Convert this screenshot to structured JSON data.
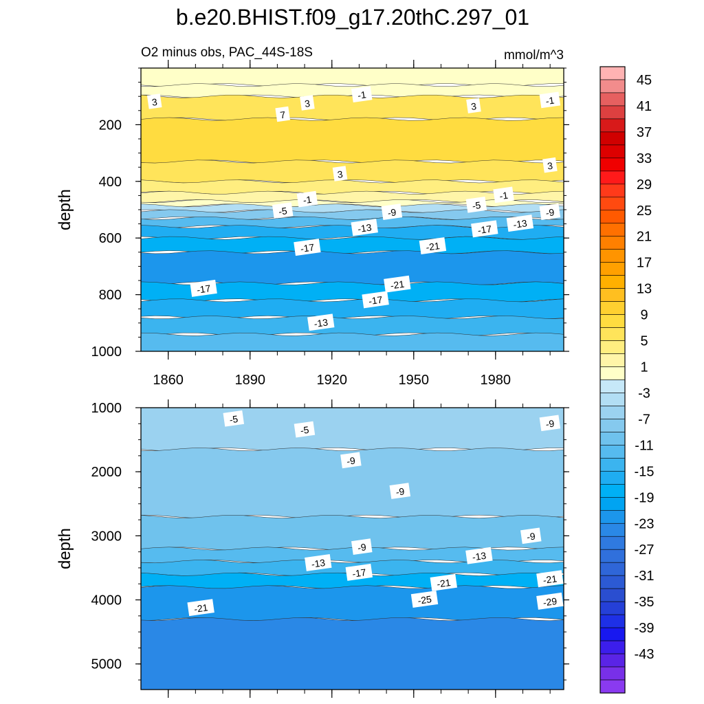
{
  "figure": {
    "title": "b.e20.BHIST.f09_g17.20thC.297_01",
    "subtitle_left": "O2 minus obs, PAC_44S-18S",
    "units": "mmol/m^3"
  },
  "chart_data": [
    {
      "type": "heatmap",
      "panel": "upper",
      "xlabel": "",
      "ylabel": "depth",
      "x_range": [
        1850,
        2005
      ],
      "ylim": [
        1000,
        0
      ],
      "xticks": [
        1860,
        1890,
        1920,
        1950,
        1980
      ],
      "yticks": [
        200,
        400,
        600,
        800,
        1000
      ],
      "bands": [
        {
          "from": 0,
          "to": 60,
          "value": 1
        },
        {
          "from": 60,
          "to": 100,
          "value": 1
        },
        {
          "from": 100,
          "to": 180,
          "value": 7
        },
        {
          "from": 180,
          "to": 330,
          "value": 9
        },
        {
          "from": 330,
          "to": 400,
          "value": 7
        },
        {
          "from": 400,
          "to": 440,
          "value": 5
        },
        {
          "from": 440,
          "to": 470,
          "value": 3
        },
        {
          "from": 470,
          "to": 485,
          "value": 1
        },
        {
          "from": 485,
          "to": 505,
          "value": -3
        },
        {
          "from": 505,
          "to": 530,
          "value": -7
        },
        {
          "from": 530,
          "to": 560,
          "value": -11
        },
        {
          "from": 560,
          "to": 600,
          "value": -15
        },
        {
          "from": 600,
          "to": 650,
          "value": -17
        },
        {
          "from": 650,
          "to": 760,
          "value": -21
        },
        {
          "from": 760,
          "to": 820,
          "value": -17
        },
        {
          "from": 820,
          "to": 880,
          "value": -15
        },
        {
          "from": 880,
          "to": 940,
          "value": -13
        },
        {
          "from": 940,
          "to": 1000,
          "value": -11
        }
      ],
      "contour_labels": [
        {
          "text": "3",
          "x": 1855,
          "y": 120
        },
        {
          "text": "3",
          "x": 1911,
          "y": 125
        },
        {
          "text": "-1",
          "x": 1931,
          "y": 95
        },
        {
          "text": "7",
          "x": 1902,
          "y": 165
        },
        {
          "text": "3",
          "x": 1972,
          "y": 135
        },
        {
          "text": "-1",
          "x": 2002,
          "y": 115
        },
        {
          "text": "3",
          "x": 1923,
          "y": 375
        },
        {
          "text": "3",
          "x": 2007,
          "y": 345
        },
        {
          "text": "-5",
          "x": 1902,
          "y": 505
        },
        {
          "text": "-1",
          "x": 1911,
          "y": 465
        },
        {
          "text": "-9",
          "x": 1942,
          "y": 510
        },
        {
          "text": "-13",
          "x": 1932,
          "y": 565
        },
        {
          "text": "-17",
          "x": 1911,
          "y": 635
        },
        {
          "text": "-21",
          "x": 1957,
          "y": 630
        },
        {
          "text": "-5",
          "x": 1973,
          "y": 485
        },
        {
          "text": "-1",
          "x": 1983,
          "y": 450
        },
        {
          "text": "-17",
          "x": 1976,
          "y": 570
        },
        {
          "text": "-13",
          "x": 1989,
          "y": 550
        },
        {
          "text": "-9",
          "x": 2005,
          "y": 510
        },
        {
          "text": "-17",
          "x": 1873,
          "y": 780
        },
        {
          "text": "-21",
          "x": 1944,
          "y": 765
        },
        {
          "text": "-17",
          "x": 1936,
          "y": 820
        },
        {
          "text": "-13",
          "x": 1916,
          "y": 900
        }
      ]
    },
    {
      "type": "heatmap",
      "panel": "lower",
      "xlabel": "",
      "ylabel": "depth",
      "x_range": [
        1850,
        2005
      ],
      "ylim": [
        5400,
        1000
      ],
      "yticks": [
        1000,
        2000,
        3000,
        4000,
        5000
      ],
      "bands": [
        {
          "from": 1000,
          "to": 1650,
          "value": -5
        },
        {
          "from": 1650,
          "to": 2700,
          "value": -7
        },
        {
          "from": 2700,
          "to": 3200,
          "value": -9
        },
        {
          "from": 3200,
          "to": 3400,
          "value": -11
        },
        {
          "from": 3400,
          "to": 3600,
          "value": -13
        },
        {
          "from": 3600,
          "to": 3800,
          "value": -17
        },
        {
          "from": 3800,
          "to": 4300,
          "value": -21
        },
        {
          "from": 4300,
          "to": 5400,
          "value": -23
        }
      ],
      "contour_labels": [
        {
          "text": "-5",
          "x": 1884,
          "y": 1180
        },
        {
          "text": "-5",
          "x": 1910,
          "y": 1350
        },
        {
          "text": "-9",
          "x": 2004,
          "y": 1250
        },
        {
          "text": "-9",
          "x": 1927,
          "y": 1830
        },
        {
          "text": "-9",
          "x": 1945,
          "y": 2310
        },
        {
          "text": "-9",
          "x": 1993,
          "y": 3010
        },
        {
          "text": "-9",
          "x": 1931,
          "y": 3180
        },
        {
          "text": "-13",
          "x": 1915,
          "y": 3430
        },
        {
          "text": "-13",
          "x": 1974,
          "y": 3320
        },
        {
          "text": "-17",
          "x": 1930,
          "y": 3580
        },
        {
          "text": "-21",
          "x": 1961,
          "y": 3740
        },
        {
          "text": "-21",
          "x": 2004,
          "y": 3680
        },
        {
          "text": "-25",
          "x": 1954,
          "y": 4000
        },
        {
          "text": "-29",
          "x": 2002,
          "y": 4030
        },
        {
          "text": "-21",
          "x": 1872,
          "y": 4130
        }
      ]
    },
    {
      "type": "colorbar",
      "labels": [
        "45",
        "41",
        "37",
        "33",
        "29",
        "25",
        "21",
        "17",
        "13",
        "9",
        "5",
        "1",
        "-3",
        "-7",
        "-11",
        "-15",
        "-19",
        "-23",
        "-27",
        "-31",
        "-35",
        "-39",
        "-43"
      ],
      "colors": [
        "#ffb3b3",
        "#f28c8c",
        "#e66060",
        "#dd4040",
        "#d81a1a",
        "#d00000",
        "#dd0000",
        "#f00000",
        "#ff1a1a",
        "#ff3a1a",
        "#ff4a10",
        "#ff5a00",
        "#ff7000",
        "#ff8000",
        "#ff9400",
        "#ffa000",
        "#ffb000",
        "#ffbf20",
        "#ffd030",
        "#ffdc40",
        "#ffe45a",
        "#ffee80",
        "#fff5a8",
        "#ffffc8",
        "#c6e8f8",
        "#b2def4",
        "#9bd2f0",
        "#85c9ee",
        "#6fc2ed",
        "#56bbef",
        "#3bb4ef",
        "#1fadf2",
        "#00b0f5",
        "#00a4f2",
        "#1c96ec",
        "#2a88e6",
        "#2f7ae0",
        "#3070dc",
        "#2f66d8",
        "#2c5ad4",
        "#2a4ed0",
        "#2540d8",
        "#1e30e6",
        "#1818f0",
        "#3c1eec",
        "#5a24e6",
        "#7830e8",
        "#8a3af0"
      ]
    }
  ]
}
